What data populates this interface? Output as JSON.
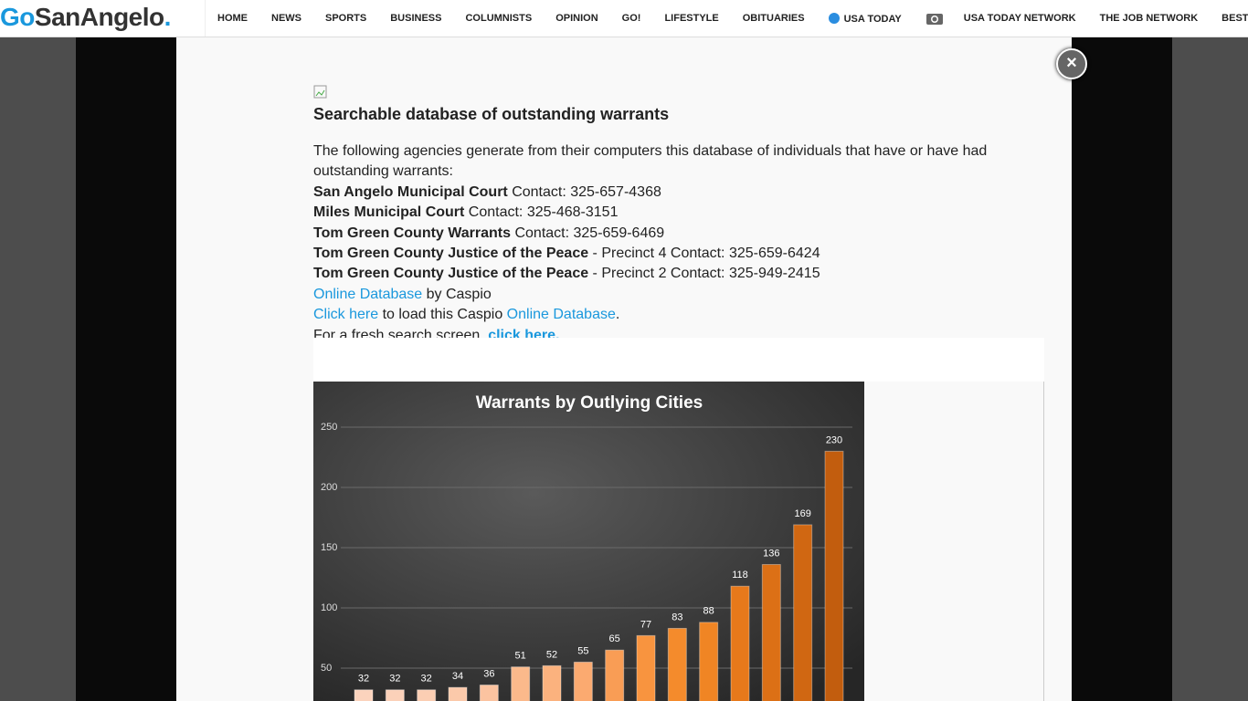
{
  "header": {
    "logo": [
      "Go",
      "SanAngelo",
      "."
    ],
    "nav": [
      "HOME",
      "NEWS",
      "SPORTS",
      "BUSINESS",
      "COLUMNISTS",
      "OPINION",
      "GO!",
      "LIFESTYLE",
      "OBITUARIES",
      "USA TODAY",
      "USA TODAY NETWORK",
      "THE JOB NETWORK",
      "BEST OF"
    ]
  },
  "article": {
    "title": "Searchable database of outstanding warrants",
    "intro": "The following agencies generate from their computers this database of individuals that have or have had outstanding warrants:",
    "contacts": [
      {
        "name": "San Angelo Municipal Court",
        "text": " Contact: 325-657-4368"
      },
      {
        "name": "Miles Municipal Court",
        "text": " Contact: 325-468-3151"
      },
      {
        "name": "Tom Green County Warrants",
        "text": " Contact: 325-659-6469"
      },
      {
        "name": "Tom Green County Justice of the Peace",
        "text": " - Precinct 4 Contact: 325-659-6424"
      },
      {
        "name": "Tom Green County Justice of the Peace",
        "text": " - Precinct 2 Contact: 325-949-2415"
      }
    ],
    "line1": {
      "link": "Online Database",
      "text": " by Caspio"
    },
    "line2": {
      "link": "Click here",
      "text": " to load this Caspio ",
      "link2": "Online Database",
      "end": "."
    },
    "line3": {
      "text": "For a fresh search screen, ",
      "link": "click here."
    }
  },
  "chart": {
    "type": "bar",
    "title": "Warrants by Outlying Cities",
    "values": [
      32,
      32,
      32,
      34,
      36,
      51,
      52,
      55,
      65,
      77,
      83,
      88,
      118,
      136,
      169,
      230
    ],
    "colors": [
      "#fbd3bd",
      "#fbd1b9",
      "#fbceb3",
      "#fbc9aa",
      "#fbc3a0",
      "#fbb98b",
      "#fbb27e",
      "#fbaa70",
      "#f99d55",
      "#f8943f",
      "#f48b2c",
      "#f08524",
      "#e7791b",
      "#dc7016",
      "#d06712",
      "#c25d0e"
    ],
    "ylim": [
      0,
      250
    ],
    "yticks": [
      50,
      100,
      150,
      200,
      250
    ],
    "grid": true
  }
}
